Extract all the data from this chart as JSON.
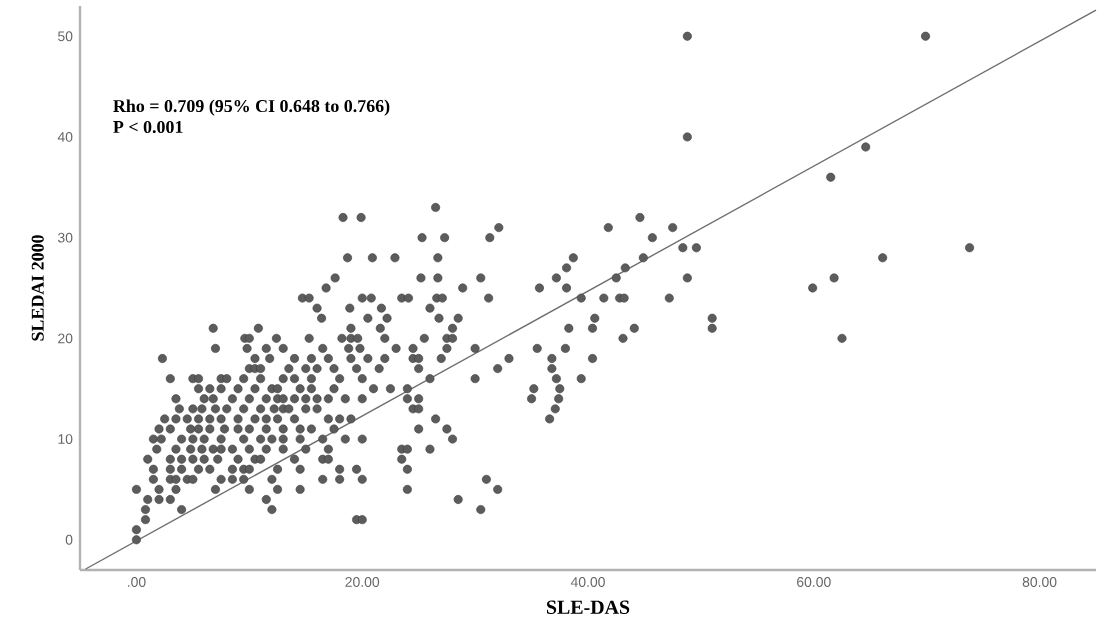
{
  "chart_data": {
    "type": "scatter",
    "xlabel": "SLE-DAS",
    "ylabel": "SLEDAI 2000",
    "annotations": [
      "Rho = 0.709 (95% CI 0.648 to 0.766)",
      "P < 0.001"
    ],
    "xlim": [
      -5,
      85
    ],
    "ylim": [
      -3,
      53
    ],
    "xticks": [
      {
        "value": 0,
        "label": ".00"
      },
      {
        "value": 20,
        "label": "20.00"
      },
      {
        "value": 40,
        "label": "40.00"
      },
      {
        "value": 60,
        "label": "60.00"
      },
      {
        "value": 80,
        "label": "80.00"
      }
    ],
    "yticks": [
      0,
      10,
      20,
      30,
      40,
      50
    ],
    "series": [
      {
        "marker": "circle",
        "color": "#5c5c5c",
        "x": [
          48.8,
          69.9,
          48.8,
          64.6,
          61.5,
          26.5,
          18.3,
          19.9,
          32.1,
          41.8,
          44.6,
          47.5,
          25.3,
          27.3,
          31.3,
          45.7,
          48.4,
          49.6,
          73.8,
          18.7,
          20.9,
          22.9,
          26.7,
          38.7,
          44.9,
          66.1,
          38.1,
          43.3,
          17.6,
          25.2,
          26.7,
          30.5,
          37.2,
          42.5,
          48.8,
          61.8,
          16.8,
          28.9,
          35.7,
          38.1,
          59.9,
          14.7,
          15.3,
          20.0,
          20.8,
          23.5,
          24.1,
          26.6,
          27.1,
          31.2,
          39.4,
          41.4,
          42.8,
          43.2,
          47.2,
          16.0,
          18.9,
          21.7,
          26.0,
          16.4,
          20.5,
          22.2,
          26.8,
          28.5,
          40.6,
          51.0,
          6.8,
          10.8,
          19.0,
          21.6,
          28.0,
          38.3,
          40.4,
          44.1,
          51.0,
          9.6,
          10.0,
          12.4,
          15.3,
          18.2,
          19.0,
          19.6,
          22.0,
          25.5,
          27.5,
          28.0,
          43.1,
          62.5,
          7.0,
          9.8,
          11.5,
          13.0,
          16.5,
          18.8,
          19.8,
          23.0,
          24.5,
          27.5,
          30.0,
          35.5,
          38.0,
          2.3,
          10.5,
          11.8,
          14.0,
          15.5,
          17.0,
          19.0,
          20.5,
          22.0,
          24.5,
          25.0,
          27.0,
          33.0,
          36.8,
          40.4,
          10.0,
          10.5,
          11.0,
          13.5,
          15.0,
          16.0,
          17.5,
          19.5,
          21.5,
          25.0,
          32.0,
          36.8,
          3.0,
          5.0,
          5.5,
          7.5,
          8.0,
          9.5,
          11.0,
          13.0,
          14.0,
          15.5,
          18.0,
          20.0,
          26.0,
          30.0,
          37.2,
          39.4,
          5.5,
          6.5,
          7.5,
          9.0,
          10.5,
          12.0,
          12.5,
          14.5,
          15.5,
          17.5,
          21.0,
          22.5,
          24.0,
          35.2,
          37.5,
          3.5,
          6.0,
          6.8,
          8.5,
          10.0,
          11.5,
          12.5,
          13.0,
          14.0,
          15.0,
          16.0,
          17.0,
          18.5,
          20.0,
          24.0,
          25.0,
          35.0,
          37.4,
          3.8,
          5.0,
          5.8,
          7.0,
          8.0,
          9.5,
          11.0,
          12.2,
          13.0,
          13.5,
          15.0,
          16.0,
          24.5,
          25.0,
          37.1,
          2.5,
          3.5,
          4.5,
          5.5,
          6.5,
          7.5,
          9.0,
          10.5,
          11.5,
          12.5,
          14.0,
          17.0,
          18.0,
          19.0,
          26.5,
          36.6,
          2.0,
          3.0,
          4.8,
          5.5,
          6.5,
          7.8,
          9.0,
          10.0,
          11.5,
          13.0,
          14.5,
          15.5,
          17.5,
          25.0,
          27.5,
          1.5,
          2.2,
          4.0,
          5.0,
          6.0,
          7.5,
          9.5,
          11.0,
          12.0,
          13.0,
          14.5,
          16.5,
          18.5,
          20.0,
          28.0,
          1.8,
          3.5,
          4.8,
          5.8,
          6.8,
          7.5,
          8.5,
          10.0,
          11.5,
          13.0,
          15.0,
          17.0,
          23.5,
          24.0,
          26.0,
          1.0,
          3.0,
          4.0,
          5.0,
          6.0,
          7.2,
          9.0,
          10.5,
          11.0,
          14.0,
          16.5,
          17.0,
          23.5,
          1.5,
          3.0,
          4.0,
          5.5,
          6.5,
          8.5,
          9.5,
          10.0,
          12.5,
          14.5,
          18.0,
          19.5,
          24.0,
          1.5,
          3.0,
          3.5,
          4.5,
          5.0,
          7.5,
          8.5,
          9.5,
          12.0,
          16.5,
          18.0,
          20.0,
          31.0,
          0.0,
          2.0,
          3.5,
          7.0,
          10.0,
          12.5,
          14.5,
          24.0,
          32.0,
          1.0,
          2.0,
          3.0,
          11.5,
          28.5,
          0.8,
          4.0,
          12.0,
          30.5,
          0.8,
          19.5,
          20.0,
          0.0,
          0.0
        ],
        "values": [
          50,
          50,
          40,
          39,
          36,
          33,
          32,
          32,
          31,
          31,
          32,
          31,
          30,
          30,
          30,
          30,
          29,
          29,
          29,
          28,
          28,
          28,
          28,
          28,
          28,
          28,
          27,
          27,
          26,
          26,
          26,
          26,
          26,
          26,
          26,
          26,
          25,
          25,
          25,
          25,
          25,
          24,
          24,
          24,
          24,
          24,
          24,
          24,
          24,
          24,
          24,
          24,
          24,
          24,
          24,
          23,
          23,
          23,
          23,
          22,
          22,
          22,
          22,
          22,
          22,
          22,
          21,
          21,
          21,
          21,
          21,
          21,
          21,
          21,
          21,
          20,
          20,
          20,
          20,
          20,
          20,
          20,
          20,
          20,
          20,
          20,
          20,
          20,
          19,
          19,
          19,
          19,
          19,
          19,
          19,
          19,
          19,
          19,
          19,
          19,
          19,
          18,
          18,
          18,
          18,
          18,
          18,
          18,
          18,
          18,
          18,
          18,
          18,
          18,
          18,
          18,
          17,
          17,
          17,
          17,
          17,
          17,
          17,
          17,
          17,
          17,
          17,
          17,
          16,
          16,
          16,
          16,
          16,
          16,
          16,
          16,
          16,
          16,
          16,
          16,
          16,
          16,
          16,
          16,
          15,
          15,
          15,
          15,
          15,
          15,
          15,
          15,
          15,
          15,
          15,
          15,
          15,
          15,
          15,
          14,
          14,
          14,
          14,
          14,
          14,
          14,
          14,
          14,
          14,
          14,
          14,
          14,
          14,
          14,
          14,
          14,
          14,
          13,
          13,
          13,
          13,
          13,
          13,
          13,
          13,
          13,
          13,
          13,
          13,
          13,
          13,
          13,
          12,
          12,
          12,
          12,
          12,
          12,
          12,
          12,
          12,
          12,
          12,
          12,
          12,
          12,
          12,
          12,
          11,
          11,
          11,
          11,
          11,
          11,
          11,
          11,
          11,
          11,
          11,
          11,
          11,
          11,
          11,
          10,
          10,
          10,
          10,
          10,
          10,
          10,
          10,
          10,
          10,
          10,
          10,
          10,
          10,
          10,
          9,
          9,
          9,
          9,
          9,
          9,
          9,
          9,
          9,
          9,
          9,
          9,
          9,
          9,
          9,
          8,
          8,
          8,
          8,
          8,
          8,
          8,
          8,
          8,
          8,
          8,
          8,
          8,
          7,
          7,
          7,
          7,
          7,
          7,
          7,
          7,
          7,
          7,
          7,
          7,
          7,
          6,
          6,
          6,
          6,
          6,
          6,
          6,
          6,
          6,
          6,
          6,
          6,
          6,
          5,
          5,
          5,
          5,
          5,
          5,
          5,
          5,
          5,
          4,
          4,
          4,
          4,
          4,
          3,
          3,
          3,
          3,
          2,
          2,
          2,
          1,
          0
        ]
      },
      {
        "type": "line",
        "marker": "none",
        "color": "#6e6e6e",
        "x": [
          -4.5,
          85
        ],
        "values": [
          -2.9,
          52.6
        ]
      }
    ]
  }
}
